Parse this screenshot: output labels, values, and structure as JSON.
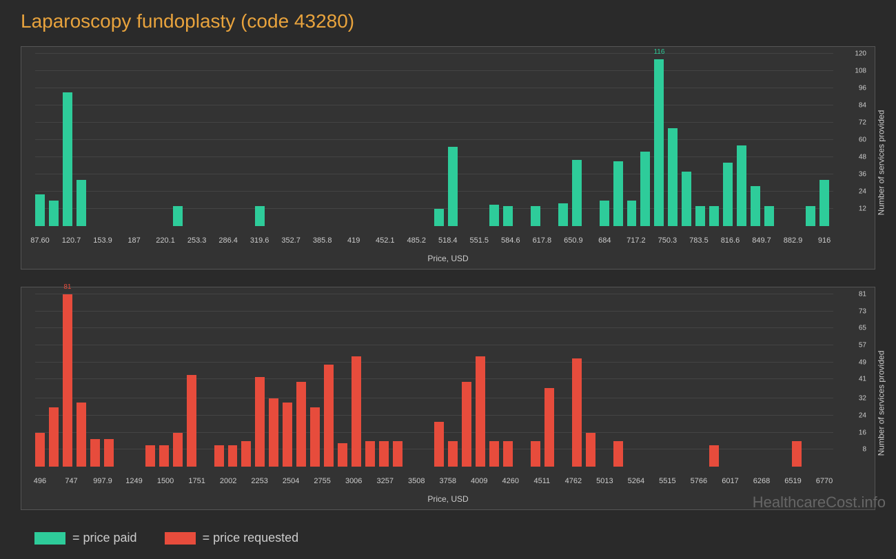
{
  "title": "Laparoscopy fundoplasty (code 43280)",
  "watermark": "HealthcareCost.info",
  "chart1": {
    "type": "bar",
    "color": "#2ecc9a",
    "x_label": "Price, USD",
    "y_label": "Number of services provided",
    "x_ticks": [
      "87.60",
      "120.7",
      "153.9",
      "187",
      "220.1",
      "253.3",
      "286.4",
      "319.6",
      "352.7",
      "385.8",
      "419",
      "452.1",
      "485.2",
      "518.4",
      "551.5",
      "584.6",
      "617.8",
      "650.9",
      "684",
      "717.2",
      "750.3",
      "783.5",
      "816.6",
      "849.7",
      "882.9",
      "916"
    ],
    "y_ticks": [
      12,
      24,
      36,
      48,
      60,
      72,
      84,
      96,
      108,
      120
    ],
    "ylim": 120,
    "max_annotation": "116",
    "bars": [
      {
        "x": 0,
        "v": 22
      },
      {
        "x": 1,
        "v": 18
      },
      {
        "x": 2,
        "v": 93
      },
      {
        "x": 3,
        "v": 32
      },
      {
        "x": 10,
        "v": 14
      },
      {
        "x": 16,
        "v": 14
      },
      {
        "x": 29,
        "v": 12
      },
      {
        "x": 30,
        "v": 55
      },
      {
        "x": 33,
        "v": 15
      },
      {
        "x": 34,
        "v": 14
      },
      {
        "x": 36,
        "v": 14
      },
      {
        "x": 38,
        "v": 16
      },
      {
        "x": 39,
        "v": 46
      },
      {
        "x": 41,
        "v": 18
      },
      {
        "x": 42,
        "v": 45
      },
      {
        "x": 43,
        "v": 18
      },
      {
        "x": 44,
        "v": 52
      },
      {
        "x": 45,
        "v": 116,
        "annotated": true
      },
      {
        "x": 46,
        "v": 68
      },
      {
        "x": 47,
        "v": 38
      },
      {
        "x": 48,
        "v": 14
      },
      {
        "x": 49,
        "v": 14
      },
      {
        "x": 50,
        "v": 44
      },
      {
        "x": 51,
        "v": 56
      },
      {
        "x": 52,
        "v": 28
      },
      {
        "x": 53,
        "v": 14
      },
      {
        "x": 56,
        "v": 14
      },
      {
        "x": 57,
        "v": 32
      }
    ]
  },
  "chart2": {
    "type": "bar",
    "color": "#e74c3c",
    "x_label": "Price, USD",
    "y_label": "Number of services provided",
    "x_ticks": [
      "496",
      "747",
      "997.9",
      "1249",
      "1500",
      "1751",
      "2002",
      "2253",
      "2504",
      "2755",
      "3006",
      "3257",
      "3508",
      "3758",
      "4009",
      "4260",
      "4511",
      "4762",
      "5013",
      "5264",
      "5515",
      "5766",
      "6017",
      "6268",
      "6519",
      "6770"
    ],
    "y_ticks": [
      8,
      16,
      24,
      32,
      41,
      49,
      57,
      65,
      73,
      81
    ],
    "ylim": 81,
    "max_annotation": "81",
    "bars": [
      {
        "x": 0,
        "v": 16
      },
      {
        "x": 1,
        "v": 28
      },
      {
        "x": 2,
        "v": 81,
        "annotated": true
      },
      {
        "x": 3,
        "v": 30
      },
      {
        "x": 4,
        "v": 13
      },
      {
        "x": 5,
        "v": 13
      },
      {
        "x": 8,
        "v": 10
      },
      {
        "x": 9,
        "v": 10
      },
      {
        "x": 10,
        "v": 16
      },
      {
        "x": 11,
        "v": 43
      },
      {
        "x": 13,
        "v": 10
      },
      {
        "x": 14,
        "v": 10
      },
      {
        "x": 15,
        "v": 12
      },
      {
        "x": 16,
        "v": 42
      },
      {
        "x": 17,
        "v": 32
      },
      {
        "x": 18,
        "v": 30
      },
      {
        "x": 19,
        "v": 40
      },
      {
        "x": 20,
        "v": 28
      },
      {
        "x": 21,
        "v": 48
      },
      {
        "x": 22,
        "v": 11
      },
      {
        "x": 23,
        "v": 52
      },
      {
        "x": 24,
        "v": 12
      },
      {
        "x": 25,
        "v": 12
      },
      {
        "x": 26,
        "v": 12
      },
      {
        "x": 29,
        "v": 21
      },
      {
        "x": 30,
        "v": 12
      },
      {
        "x": 31,
        "v": 40
      },
      {
        "x": 32,
        "v": 52
      },
      {
        "x": 33,
        "v": 12
      },
      {
        "x": 34,
        "v": 12
      },
      {
        "x": 36,
        "v": 12
      },
      {
        "x": 37,
        "v": 37
      },
      {
        "x": 39,
        "v": 51
      },
      {
        "x": 40,
        "v": 16
      },
      {
        "x": 42,
        "v": 12
      },
      {
        "x": 49,
        "v": 10
      },
      {
        "x": 55,
        "v": 12
      }
    ]
  },
  "legend": {
    "paid": {
      "color": "#2ecc9a",
      "label": "= price paid"
    },
    "requested": {
      "color": "#e74c3c",
      "label": "= price requested"
    }
  },
  "styling": {
    "background": "#2a2a2a",
    "panel_background": "#333333",
    "border_color": "#555555",
    "grid_color": "#444444",
    "text_color": "#cccccc",
    "title_color": "#e8a33d"
  }
}
